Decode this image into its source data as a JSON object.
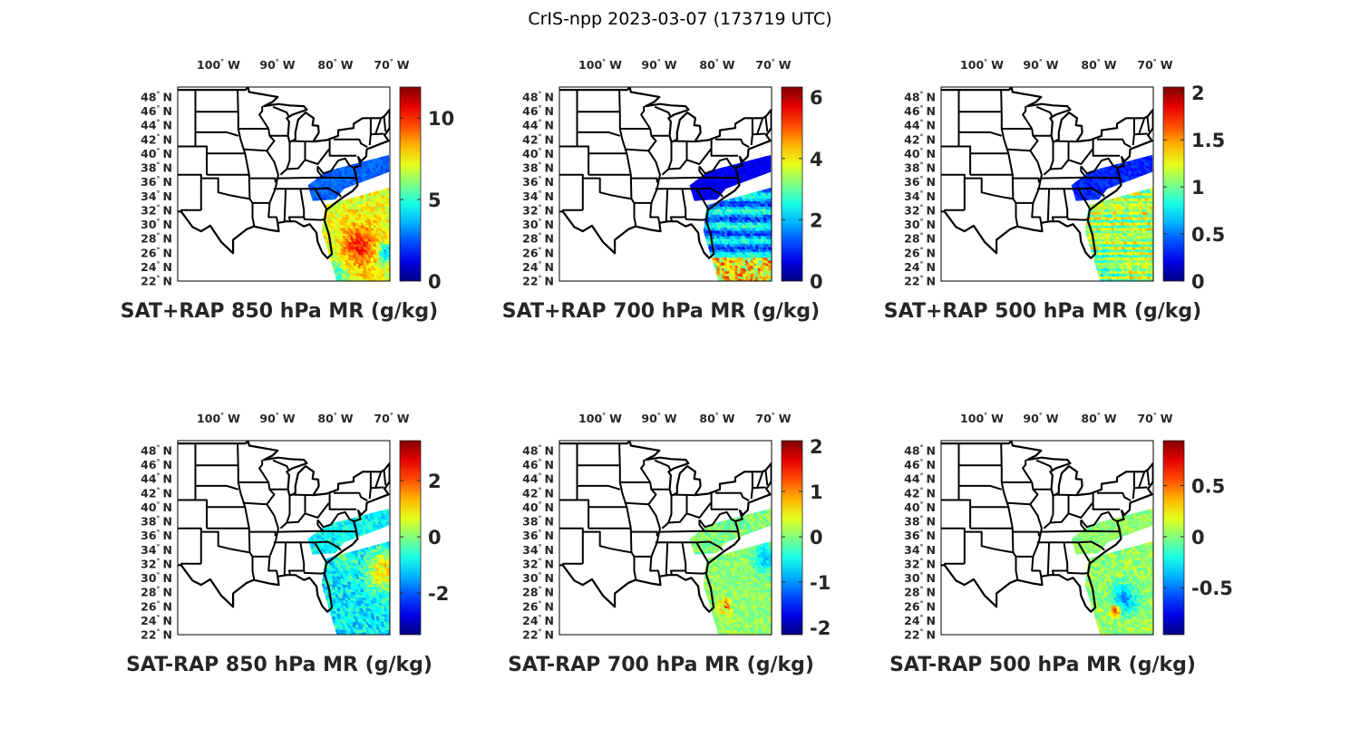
{
  "figure": {
    "title": "CrIS-npp 2023-03-07 (173719 UTC)"
  },
  "axis_labels": {
    "degree_symbol": "°",
    "west": "W",
    "north": "N"
  },
  "lon_ticks": [
    "100",
    "90",
    "80",
    "70"
  ],
  "lat_ticks": [
    "48",
    "46",
    "44",
    "42",
    "40",
    "38",
    "36",
    "34",
    "32",
    "30",
    "28",
    "26",
    "24",
    "22"
  ],
  "panels": [
    {
      "title": "SAT+RAP 850 hPa MR (g/kg)",
      "colorbar": {
        "ticks": [
          "0",
          "5",
          "10"
        ],
        "tick_values": [
          0,
          5,
          10
        ],
        "range": [
          0,
          11.9
        ]
      }
    },
    {
      "title": "SAT+RAP 700 hPa MR (g/kg)",
      "colorbar": {
        "ticks": [
          "0",
          "2",
          "4",
          "6"
        ],
        "tick_values": [
          0,
          2,
          4,
          6
        ],
        "range": [
          0,
          6.33
        ]
      }
    },
    {
      "title": "SAT+RAP 500 hPa MR (g/kg)",
      "colorbar": {
        "ticks": [
          "0",
          "0.5",
          "1",
          "1.5",
          "2"
        ],
        "tick_values": [
          0,
          0.5,
          1,
          1.5,
          2
        ],
        "range": [
          0,
          2.06
        ]
      }
    },
    {
      "title": "SAT-RAP 850 hPa MR (g/kg)",
      "colorbar": {
        "ticks": [
          "-2",
          "0",
          "2"
        ],
        "tick_values": [
          -2,
          0,
          2
        ],
        "range": [
          -3.48,
          3.42
        ]
      }
    },
    {
      "title": "SAT-RAP 700 hPa MR (g/kg)",
      "colorbar": {
        "ticks": [
          "-2",
          "-1",
          "0",
          "1",
          "2"
        ],
        "tick_values": [
          -2,
          -1,
          0,
          1,
          2
        ],
        "range": [
          -2.16,
          2.12
        ]
      }
    },
    {
      "title": "SAT-RAP 500 hPa MR (g/kg)",
      "colorbar": {
        "ticks": [
          "-0.5",
          "0",
          "0.5"
        ],
        "tick_values": [
          -0.5,
          0,
          0.5
        ],
        "range": [
          -0.96,
          0.94
        ]
      }
    }
  ]
}
